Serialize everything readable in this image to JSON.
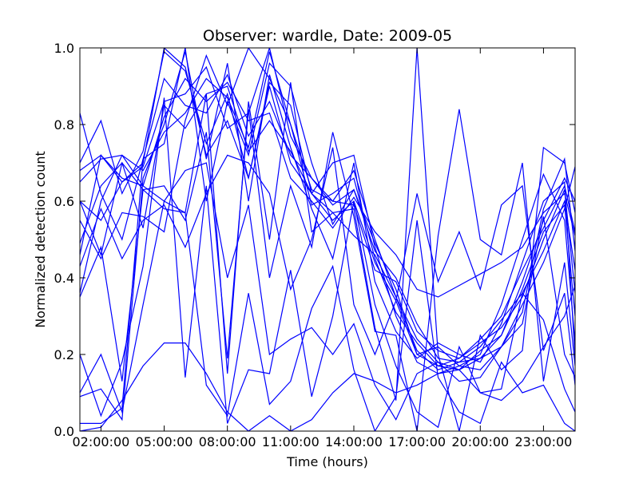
{
  "chart_data": {
    "type": "line",
    "title": "Observer: wardle, Date: 2009-05",
    "xlabel": "Time (hours)",
    "ylabel": "Normalized detection count",
    "xlim": [
      1.0,
      24.5
    ],
    "ylim": [
      0.0,
      1.0
    ],
    "x_ticks": [
      2,
      5,
      8,
      11,
      14,
      17,
      20,
      23
    ],
    "x_tick_labels": [
      "02:00:00",
      "05:00:00",
      "08:00:00",
      "11:00:00",
      "14:00:00",
      "17:00:00",
      "20:00:00",
      "23:00:00"
    ],
    "y_ticks": [
      0.0,
      0.2,
      0.4,
      0.6,
      0.8,
      1.0
    ],
    "y_tick_labels": [
      "0.0",
      "0.2",
      "0.4",
      "0.6",
      "0.8",
      "1.0"
    ],
    "grid": false,
    "line_color": "#0000ff",
    "x": [
      1,
      2,
      3,
      4,
      5,
      6,
      7,
      8,
      9,
      10,
      11,
      12,
      13,
      14,
      15,
      16,
      17,
      18,
      19,
      20,
      21,
      22,
      23,
      24,
      24.5
    ],
    "series": [
      {
        "values": [
          0.7,
          0.81,
          0.62,
          0.73,
          0.99,
          0.94,
          0.75,
          0.88,
          0.66,
          0.91,
          0.85,
          0.62,
          0.7,
          0.72,
          0.48,
          0.3,
          0.18,
          0.15,
          0.17,
          0.16,
          0.22,
          0.31,
          0.58,
          0.71,
          0.47
        ]
      },
      {
        "values": [
          0.46,
          0.72,
          0.65,
          0.69,
          0.86,
          0.88,
          0.95,
          0.79,
          0.83,
          1.0,
          0.77,
          0.66,
          0.6,
          0.68,
          0.5,
          0.35,
          0.21,
          0.16,
          0.18,
          0.19,
          0.25,
          0.39,
          0.55,
          0.66,
          0.6
        ]
      },
      {
        "values": [
          0.36,
          0.6,
          0.72,
          0.68,
          0.78,
          0.83,
          0.92,
          0.87,
          0.74,
          0.99,
          0.8,
          0.59,
          0.62,
          0.66,
          0.45,
          0.31,
          0.23,
          0.17,
          0.19,
          0.23,
          0.27,
          0.35,
          0.5,
          0.63,
          0.36
        ]
      },
      {
        "values": [
          0.6,
          0.55,
          0.65,
          0.7,
          1.0,
          0.95,
          0.72,
          0.81,
          0.66,
          0.9,
          0.7,
          0.62,
          0.55,
          0.6,
          0.44,
          0.34,
          0.2,
          0.17,
          0.16,
          0.19,
          0.22,
          0.33,
          0.44,
          0.58,
          0.69
        ]
      },
      {
        "values": [
          0.83,
          0.62,
          0.5,
          0.71,
          0.92,
          0.85,
          0.83,
          0.93,
          0.77,
          0.86,
          0.72,
          0.66,
          0.59,
          0.63,
          0.47,
          0.4,
          0.28,
          0.19,
          0.18,
          0.22,
          0.29,
          0.36,
          0.47,
          0.6,
          0.42
        ]
      },
      {
        "values": [
          0.68,
          0.72,
          0.66,
          0.64,
          0.82,
          0.92,
          0.86,
          0.91,
          0.81,
          0.83,
          0.66,
          0.6,
          0.53,
          0.61,
          0.52,
          0.46,
          0.37,
          0.35,
          0.38,
          0.41,
          0.44,
          0.48,
          0.57,
          0.62,
          0.51
        ]
      },
      {
        "values": [
          0.09,
          0.11,
          0.03,
          0.66,
          0.8,
          0.99,
          0.71,
          0.96,
          0.6,
          0.93,
          0.74,
          0.58,
          0.45,
          0.7,
          0.39,
          0.26,
          0.19,
          0.23,
          0.2,
          0.18,
          0.28,
          0.44,
          0.6,
          0.65,
          0.19
        ]
      },
      {
        "values": [
          0.02,
          0.02,
          0.06,
          0.71,
          0.75,
          1.0,
          0.6,
          0.86,
          0.72,
          0.96,
          0.9,
          0.7,
          0.54,
          0.63,
          0.49,
          0.37,
          0.2,
          0.22,
          0.17,
          0.2,
          0.33,
          0.5,
          0.67,
          0.55,
          0.23
        ]
      },
      {
        "values": [
          0.55,
          0.45,
          0.57,
          0.56,
          0.52,
          0.81,
          0.98,
          0.85,
          1.0,
          0.92,
          0.8,
          0.63,
          0.6,
          0.59,
          0.42,
          0.39,
          0.26,
          0.21,
          0.19,
          0.24,
          0.3,
          0.42,
          0.53,
          0.64,
          0.52
        ]
      },
      {
        "values": [
          0.49,
          0.64,
          0.7,
          0.53,
          0.85,
          0.79,
          0.88,
          0.9,
          0.73,
          0.81,
          0.73,
          0.62,
          0.57,
          0.51,
          0.46,
          0.35,
          0.24,
          0.18,
          0.16,
          0.21,
          0.25,
          0.37,
          0.52,
          0.59,
          0.3
        ]
      },
      {
        "values": [
          0.0,
          0.01,
          0.08,
          0.17,
          0.23,
          0.23,
          0.15,
          0.05,
          0.0,
          0.04,
          0.0,
          0.03,
          0.1,
          0.15,
          0.13,
          0.1,
          0.12,
          0.15,
          0.16,
          0.1,
          0.08,
          0.13,
          0.22,
          0.3,
          0.38
        ]
      },
      {
        "values": [
          0.1,
          0.2,
          0.05,
          0.33,
          0.6,
          0.68,
          0.7,
          0.4,
          0.59,
          0.2,
          0.24,
          0.27,
          0.2,
          0.28,
          0.12,
          0.03,
          0.15,
          0.18,
          0.13,
          0.14,
          0.22,
          0.28,
          0.56,
          0.2,
          0.14
        ]
      },
      {
        "values": [
          0.2,
          0.04,
          0.18,
          0.43,
          0.87,
          0.14,
          0.64,
          0.02,
          0.16,
          0.15,
          0.42,
          0.09,
          0.3,
          0.6,
          0.33,
          0.17,
          0.05,
          0.01,
          0.22,
          0.1,
          0.11,
          0.36,
          0.29,
          0.11,
          0.05
        ]
      },
      {
        "values": [
          0.35,
          0.48,
          0.13,
          0.63,
          0.58,
          0.57,
          0.12,
          0.04,
          0.36,
          0.07,
          0.13,
          0.32,
          0.43,
          0.16,
          0.0,
          0.09,
          0.55,
          0.14,
          0.05,
          0.02,
          0.18,
          0.1,
          0.12,
          0.02,
          0.0
        ]
      },
      {
        "values": [
          0.6,
          0.46,
          0.7,
          0.63,
          0.64,
          0.55,
          0.78,
          0.19,
          0.84,
          0.4,
          0.64,
          0.48,
          0.78,
          0.56,
          0.26,
          0.25,
          0.0,
          0.51,
          0.84,
          0.5,
          0.46,
          0.7,
          0.13,
          0.44,
          0.17
        ]
      },
      {
        "values": [
          0.43,
          0.58,
          0.45,
          0.55,
          0.59,
          0.48,
          0.62,
          0.72,
          0.7,
          0.62,
          0.37,
          0.5,
          0.74,
          0.33,
          0.2,
          0.34,
          0.62,
          0.39,
          0.52,
          0.37,
          0.59,
          0.64,
          0.21,
          0.36,
          0.12
        ]
      },
      {
        "values": [
          0.65,
          0.71,
          0.72,
          0.64,
          0.6,
          0.57,
          0.88,
          0.15,
          0.86,
          0.5,
          0.91,
          0.52,
          0.57,
          0.58,
          0.27,
          0.08,
          1.0,
          0.2,
          0.0,
          0.25,
          0.16,
          0.21,
          0.74,
          0.7,
          0.57
        ]
      }
    ]
  }
}
